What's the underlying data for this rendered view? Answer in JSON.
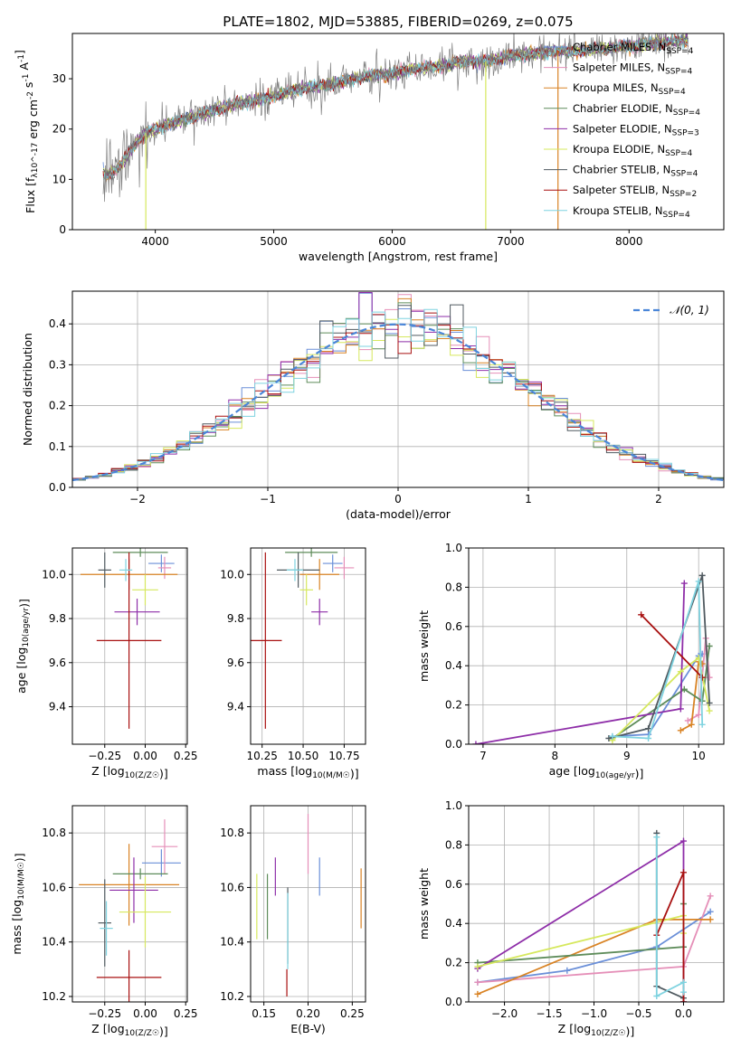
{
  "colors": {
    "chabrier_miles": "#6a8fd8",
    "salpeter_miles": "#e58fb8",
    "kroupa_miles": "#d98324",
    "chabrier_elodie": "#5e8c5a",
    "salpeter_elodie": "#8e2ea8",
    "kroupa_elodie": "#d6e85e",
    "chabrier_stelib": "#505a60",
    "salpeter_stelib": "#a81010",
    "kroupa_stelib": "#7fd3e0",
    "normal": "#4a86d8",
    "grid": "#b0b0b0"
  },
  "chart_data": [
    {
      "id": "spectrum",
      "type": "line",
      "title": "PLATE=1802, MJD=53885, FIBERID=0269, z=0.075",
      "xlabel": "wavelength [Angstrom, rest frame]",
      "ylabel": "Flux [f_λ10^-17 erg cm^-2 s^-1 A^-1]",
      "xlim": [
        3300,
        8800
      ],
      "ylim": [
        0,
        39
      ],
      "xticks": [
        4000,
        5000,
        6000,
        7000,
        8000
      ],
      "yticks": [
        0,
        10,
        20,
        30
      ],
      "grid": false,
      "legend_position": "right",
      "legend": [
        "Chabrier MILES, N_SSP=4",
        "Salpeter MILES, N_SSP=4",
        "Kroupa MILES, N_SSP=4",
        "Chabrier ELODIE, N_SSP=4",
        "Salpeter ELODIE, N_SSP=3",
        "Kroupa ELODIE, N_SSP=4",
        "Chabrier STELIB, N_SSP=4",
        "Salpeter STELIB, N_SSP=2",
        "Kroupa STELIB, N_SSP=4"
      ],
      "continuum": {
        "x": [
          3600,
          3700,
          3800,
          3900,
          4000,
          4200,
          4400,
          4600,
          4800,
          5000,
          5200,
          5400,
          5600,
          5800,
          6000,
          6200,
          6400,
          6600,
          6800,
          7000,
          7200,
          7400,
          7600,
          7800,
          8000,
          8200,
          8400
        ],
        "y": [
          11,
          12.5,
          16,
          19,
          20,
          21.5,
          23,
          24.5,
          25.5,
          26.5,
          28,
          28.5,
          29.5,
          30.5,
          31,
          32,
          32.5,
          33.5,
          33.5,
          34.5,
          35,
          35.5,
          35.5,
          36,
          36.5,
          37,
          37.5
        ]
      },
      "drops": [
        {
          "series": "kroupa_elodie",
          "x": 3920
        },
        {
          "series": "kroupa_elodie",
          "x": 6790
        },
        {
          "series": "kroupa_miles",
          "x": 7400
        }
      ]
    },
    {
      "id": "residuals",
      "type": "step",
      "xlabel": "(data-model)/error",
      "ylabel": "Normed distribution",
      "xlim": [
        -2.5,
        2.5
      ],
      "ylim": [
        0,
        0.48
      ],
      "xticks": [
        -2,
        -1,
        0,
        1,
        2
      ],
      "yticks": [
        0.0,
        0.1,
        0.2,
        0.3,
        0.4
      ],
      "grid": true,
      "legend_position": "top-right",
      "legend": [
        "𝒩(0, 1)"
      ],
      "bin_width": 0.1,
      "reference": "standard normal pdf"
    },
    {
      "id": "age-vs-Z",
      "type": "errorbar",
      "xlabel": "Z [log10(Z/Z☉)]",
      "ylabel": "age  [log10(age/yr)]",
      "xlim": [
        -0.45,
        0.26
      ],
      "ylim": [
        9.23,
        10.12
      ],
      "xticks": [
        -0.25,
        0.0,
        0.25
      ],
      "yticks": [
        9.4,
        9.6,
        9.8,
        10.0
      ],
      "points": [
        {
          "series": "chabrier_miles",
          "x": 0.1,
          "y": 10.05,
          "xerr": 0.08,
          "yerr": 0.04
        },
        {
          "series": "salpeter_miles",
          "x": 0.12,
          "y": 10.03,
          "xerr": 0.04,
          "yerr": 0.05
        },
        {
          "series": "kroupa_miles",
          "x": -0.1,
          "y": 10.0,
          "xerr": 0.3,
          "yerr": 0.07
        },
        {
          "series": "chabrier_elodie",
          "x": -0.03,
          "y": 10.1,
          "xerr": 0.17,
          "yerr": 0.02
        },
        {
          "series": "salpeter_elodie",
          "x": -0.05,
          "y": 9.83,
          "xerr": 0.14,
          "yerr": 0.06
        },
        {
          "series": "kroupa_elodie",
          "x": 0.0,
          "y": 9.93,
          "xerr": 0.08,
          "yerr": 0.07
        },
        {
          "series": "chabrier_stelib",
          "x": -0.25,
          "y": 10.02,
          "xerr": 0.04,
          "yerr": 0.08
        },
        {
          "series": "salpeter_stelib",
          "x": -0.1,
          "y": 9.7,
          "xerr": 0.2,
          "yerr": 0.4
        },
        {
          "series": "kroupa_stelib",
          "x": -0.12,
          "y": 10.02,
          "xerr": 0.04,
          "yerr": 0.05
        }
      ]
    },
    {
      "id": "age-vs-mass",
      "type": "errorbar",
      "xlabel": "mass [log10(M/M☉)]",
      "ylabel": "",
      "xlim": [
        10.18,
        10.88
      ],
      "ylim": [
        9.23,
        10.12
      ],
      "xticks": [
        10.25,
        10.5,
        10.75
      ],
      "yticks": [
        9.4,
        9.6,
        9.8,
        10.0
      ],
      "points": [
        {
          "series": "chabrier_miles",
          "x": 10.68,
          "y": 10.05,
          "xerr": 0.06,
          "yerr": 0.04
        },
        {
          "series": "salpeter_miles",
          "x": 10.75,
          "y": 10.03,
          "xerr": 0.06,
          "yerr": 0.05
        },
        {
          "series": "kroupa_miles",
          "x": 10.6,
          "y": 10.0,
          "xerr": 0.12,
          "yerr": 0.07
        },
        {
          "series": "chabrier_elodie",
          "x": 10.55,
          "y": 10.1,
          "xerr": 0.16,
          "yerr": 0.02
        },
        {
          "series": "salpeter_elodie",
          "x": 10.6,
          "y": 9.83,
          "xerr": 0.05,
          "yerr": 0.06
        },
        {
          "series": "kroupa_elodie",
          "x": 10.52,
          "y": 9.93,
          "xerr": 0.04,
          "yerr": 0.07
        },
        {
          "series": "chabrier_stelib",
          "x": 10.47,
          "y": 10.02,
          "xerr": 0.13,
          "yerr": 0.08
        },
        {
          "series": "salpeter_stelib",
          "x": 10.27,
          "y": 9.7,
          "xerr": 0.1,
          "yerr": 0.4
        },
        {
          "series": "kroupa_stelib",
          "x": 10.45,
          "y": 10.02,
          "xerr": 0.05,
          "yerr": 0.05
        }
      ]
    },
    {
      "id": "weights-vs-age",
      "type": "line",
      "xlabel": "age  [log10(age/yr)]",
      "ylabel": "mass weight",
      "xlim": [
        6.8,
        10.35
      ],
      "ylim": [
        0,
        1.0
      ],
      "xticks": [
        7,
        8,
        9,
        10
      ],
      "yticks": [
        0.0,
        0.2,
        0.4,
        0.6,
        0.8,
        1.0
      ],
      "grid": true,
      "series": [
        {
          "series": "chabrier_miles",
          "x": [
            8.8,
            9.3,
            10.0,
            10.05
          ],
          "y": [
            0.04,
            0.05,
            0.45,
            0.46
          ]
        },
        {
          "series": "salpeter_miles",
          "x": [
            9.85,
            10.0,
            10.1,
            10.15
          ],
          "y": [
            0.12,
            0.15,
            0.54,
            0.34
          ]
        },
        {
          "series": "kroupa_miles",
          "x": [
            9.75,
            9.9,
            10.0,
            10.05
          ],
          "y": [
            0.07,
            0.1,
            0.42,
            0.41
          ]
        },
        {
          "series": "chabrier_elodie",
          "x": [
            8.8,
            9.8,
            10.05,
            10.15
          ],
          "y": [
            0.03,
            0.28,
            0.22,
            0.5
          ]
        },
        {
          "series": "salpeter_elodie",
          "x": [
            6.9,
            9.75,
            9.8
          ],
          "y": [
            0.0,
            0.18,
            0.82
          ]
        },
        {
          "series": "kroupa_elodie",
          "x": [
            8.8,
            9.75,
            10.0,
            10.15
          ],
          "y": [
            0.02,
            0.37,
            0.44,
            0.17
          ]
        },
        {
          "series": "chabrier_stelib",
          "x": [
            8.75,
            9.3,
            10.05,
            10.15
          ],
          "y": [
            0.03,
            0.08,
            0.86,
            0.21
          ]
        },
        {
          "series": "salpeter_stelib",
          "x": [
            9.2,
            10.05
          ],
          "y": [
            0.66,
            0.34
          ]
        },
        {
          "series": "kroupa_stelib",
          "x": [
            8.8,
            9.3,
            10.0,
            10.05
          ],
          "y": [
            0.04,
            0.03,
            0.83,
            0.1
          ]
        }
      ]
    },
    {
      "id": "mass-vs-Z",
      "type": "errorbar",
      "xlabel": "Z [log10(Z/Z☉)]",
      "ylabel": "mass [log10(M/M☉)]",
      "xlim": [
        -0.45,
        0.26
      ],
      "ylim": [
        10.18,
        10.9
      ],
      "xticks": [
        -0.25,
        0.0,
        0.25
      ],
      "yticks": [
        10.2,
        10.4,
        10.6,
        10.8
      ],
      "points": [
        {
          "series": "chabrier_miles",
          "x": 0.1,
          "y": 10.69,
          "xerr": 0.12,
          "yerr": 0.05
        },
        {
          "series": "salpeter_miles",
          "x": 0.12,
          "y": 10.75,
          "xerr": 0.08,
          "yerr": 0.1
        },
        {
          "series": "kroupa_miles",
          "x": -0.1,
          "y": 10.61,
          "xerr": 0.31,
          "yerr": 0.15
        },
        {
          "series": "chabrier_elodie",
          "x": -0.03,
          "y": 10.65,
          "xerr": 0.17,
          "yerr": 0.02
        },
        {
          "series": "salpeter_elodie",
          "x": -0.07,
          "y": 10.59,
          "xerr": 0.15,
          "yerr": 0.12
        },
        {
          "series": "kroupa_elodie",
          "x": 0.0,
          "y": 10.51,
          "xerr": 0.16,
          "yerr": 0.13
        },
        {
          "series": "chabrier_stelib",
          "x": -0.25,
          "y": 10.47,
          "xerr": 0.04,
          "yerr": 0.16
        },
        {
          "series": "salpeter_stelib",
          "x": -0.1,
          "y": 10.27,
          "xerr": 0.2,
          "yerr": 0.1
        },
        {
          "series": "kroupa_stelib",
          "x": -0.24,
          "y": 10.45,
          "xerr": 0.04,
          "yerr": 0.1
        }
      ]
    },
    {
      "id": "mass-vs-EBV",
      "type": "errorbar",
      "xlabel": "E(B-V)",
      "ylabel": "",
      "xlim": [
        0.135,
        0.265
      ],
      "ylim": [
        10.18,
        10.9
      ],
      "xticks": [
        0.15,
        0.2,
        0.25
      ],
      "yticks": [
        10.2,
        10.4,
        10.6,
        10.8
      ],
      "points": [
        {
          "series": "chabrier_miles",
          "x": 0.213,
          "y": 10.64,
          "xerr": 0.0,
          "yerr": 0.07
        },
        {
          "series": "salpeter_miles",
          "x": 0.2,
          "y": 10.76,
          "xerr": 0.0,
          "yerr": 0.11
        },
        {
          "series": "kroupa_miles",
          "x": 0.26,
          "y": 10.56,
          "xerr": 0.0,
          "yerr": 0.11
        },
        {
          "series": "chabrier_elodie",
          "x": 0.154,
          "y": 10.53,
          "xerr": 0.0,
          "yerr": 0.12
        },
        {
          "series": "salpeter_elodie",
          "x": 0.163,
          "y": 10.64,
          "xerr": 0.0,
          "yerr": 0.07
        },
        {
          "series": "kroupa_elodie",
          "x": 0.142,
          "y": 10.53,
          "xerr": 0.0,
          "yerr": 0.12
        },
        {
          "series": "chabrier_stelib",
          "x": 0.177,
          "y": 10.46,
          "xerr": 0.0,
          "yerr": 0.14
        },
        {
          "series": "salpeter_stelib",
          "x": 0.176,
          "y": 10.25,
          "xerr": 0.0,
          "yerr": 0.05
        },
        {
          "series": "kroupa_stelib",
          "x": 0.177,
          "y": 10.44,
          "xerr": 0.0,
          "yerr": 0.14
        }
      ]
    },
    {
      "id": "weights-vs-Z",
      "type": "line",
      "xlabel": "Z [log10(Z/Z☉)]",
      "ylabel": "mass weight",
      "xlim": [
        -2.4,
        0.45
      ],
      "ylim": [
        0,
        1.0
      ],
      "xticks": [
        -2.0,
        -1.5,
        -1.0,
        -0.5,
        0.0
      ],
      "yticks": [
        0.0,
        0.2,
        0.4,
        0.6,
        0.8,
        1.0
      ],
      "grid": true,
      "series": [
        {
          "series": "chabrier_miles",
          "x": [
            -2.3,
            -1.3,
            -0.3,
            0.3
          ],
          "y": [
            0.1,
            0.16,
            0.28,
            0.46
          ]
        },
        {
          "series": "salpeter_miles",
          "x": [
            -2.3,
            -0.3,
            0.0,
            0.3
          ],
          "y": [
            0.1,
            0.17,
            0.18,
            0.54
          ]
        },
        {
          "series": "kroupa_miles",
          "x": [
            -2.3,
            -0.3,
            0.0,
            0.3
          ],
          "y": [
            0.04,
            0.42,
            0.42,
            0.42
          ]
        },
        {
          "series": "chabrier_elodie",
          "x": [
            -2.3,
            0.0,
            0.0
          ],
          "y": [
            0.2,
            0.28,
            0.5
          ]
        },
        {
          "series": "salpeter_elodie",
          "x": [
            -2.3,
            0.0,
            0.0
          ],
          "y": [
            0.17,
            0.82,
            0.0
          ]
        },
        {
          "series": "kroupa_elodie",
          "x": [
            -2.3,
            0.0,
            0.0
          ],
          "y": [
            0.18,
            0.44,
            0.35
          ]
        },
        {
          "series": "chabrier_stelib",
          "x": [
            -0.3,
            -0.3,
            0.0
          ],
          "y": [
            0.86,
            0.08,
            0.02
          ]
        },
        {
          "series": "salpeter_stelib",
          "x": [
            -0.3,
            0.0,
            0.0
          ],
          "y": [
            0.34,
            0.66,
            0.0
          ]
        },
        {
          "series": "kroupa_stelib",
          "x": [
            -0.3,
            -0.3,
            0.0,
            0.0
          ],
          "y": [
            0.84,
            0.03,
            0.1,
            0.05
          ]
        }
      ]
    }
  ]
}
